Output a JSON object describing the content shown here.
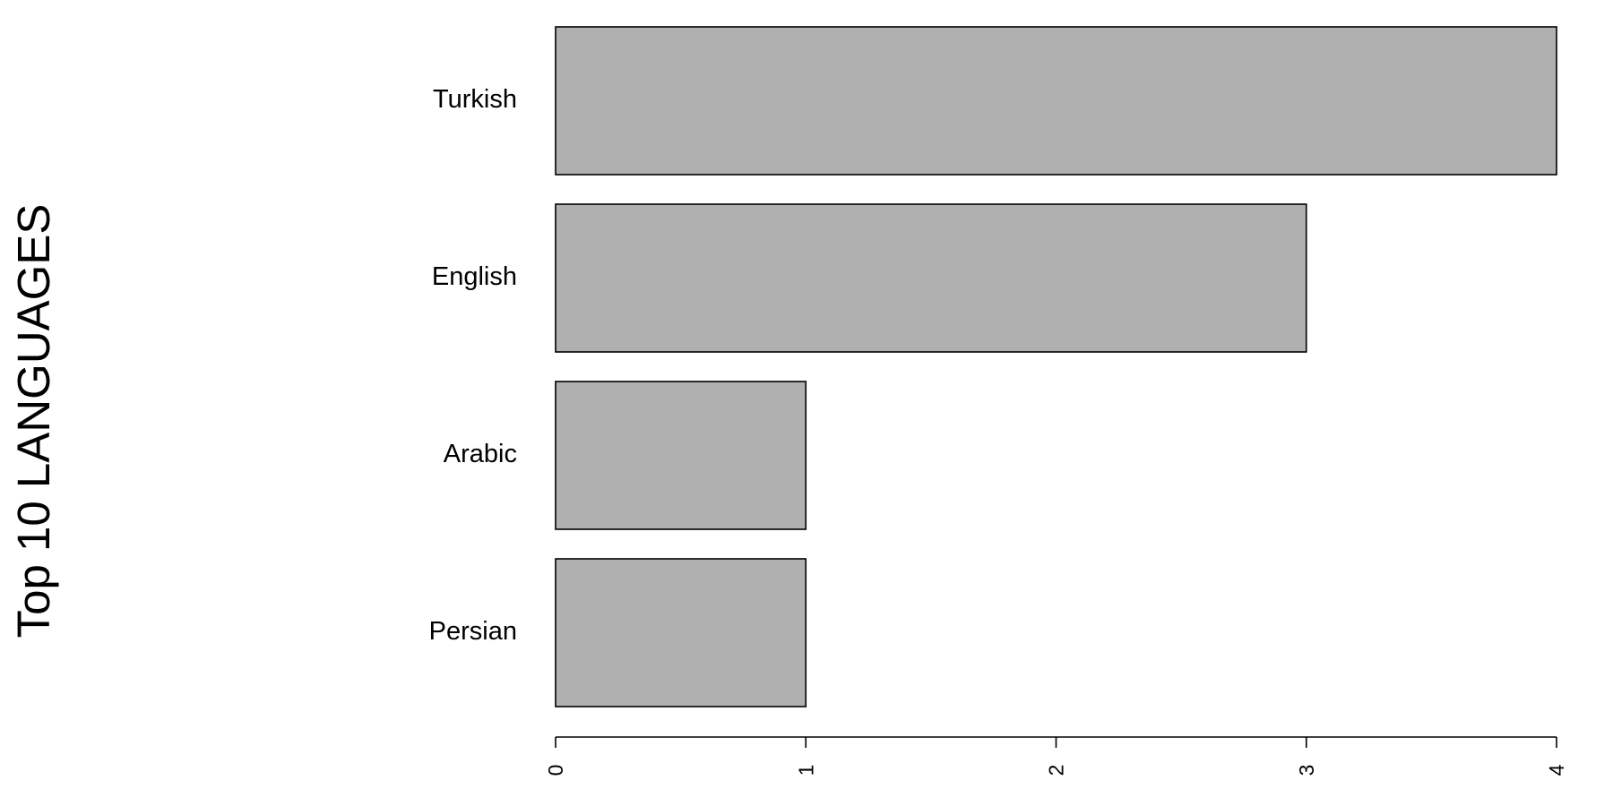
{
  "chart_data": {
    "type": "bar",
    "orientation": "horizontal",
    "title": "",
    "xlabel": "",
    "ylabel": "Top 10 LANGUAGES",
    "categories": [
      "Turkish",
      "English",
      "Arabic",
      "Persian"
    ],
    "values": [
      4,
      3,
      1,
      1
    ],
    "xlim": [
      0,
      4
    ],
    "xticks": [
      "0",
      "1",
      "2",
      "3",
      "4"
    ],
    "grid": false,
    "legend": "none",
    "bar_color": "#b0b0b0",
    "border_color": "#000000"
  }
}
